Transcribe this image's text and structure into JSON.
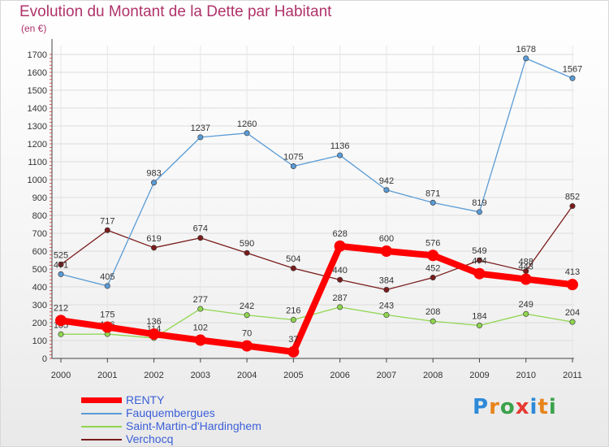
{
  "title": "Evolution du Montant de la Dette par Habitant",
  "subtitle": "(en €)",
  "logo": [
    "P",
    "r",
    "o",
    "x",
    "i",
    "t",
    "i"
  ],
  "chart_data": {
    "type": "line",
    "categories": [
      "2000",
      "2001",
      "2002",
      "2003",
      "2004",
      "2005",
      "2006",
      "2007",
      "2008",
      "2009",
      "2010",
      "2011"
    ],
    "ylim": [
      0,
      1750
    ],
    "yticks": [
      0,
      100,
      200,
      300,
      400,
      500,
      600,
      700,
      800,
      900,
      1000,
      1100,
      1200,
      1300,
      1400,
      1500,
      1600,
      1700
    ],
    "grid": true,
    "legend_placement": "bottom-left",
    "series": [
      {
        "name": "Verchocq",
        "color": "#7a1c1c",
        "values": [
          525,
          717,
          619,
          674,
          590,
          504,
          440,
          384,
          452,
          549,
          488,
          852
        ]
      },
      {
        "name": "Saint-Martin-d'Hardinghem",
        "color": "#8fd64f",
        "values": [
          135,
          136,
          114,
          277,
          242,
          216,
          287,
          243,
          208,
          184,
          249,
          204
        ]
      },
      {
        "name": "Fauquembergues",
        "color": "#5a9bd5",
        "values": [
          471,
          405,
          983,
          1237,
          1260,
          1075,
          1136,
          942,
          871,
          819,
          1678,
          1567
        ]
      },
      {
        "name": "RENTY",
        "color": "#ff0000",
        "values": [
          212,
          175,
          136,
          102,
          70,
          37,
          628,
          600,
          576,
          474,
          443,
          413
        ]
      }
    ],
    "legend_order": [
      "RENTY",
      "Fauquembergues",
      "Saint-Martin-d'Hardinghem",
      "Verchocq"
    ]
  }
}
